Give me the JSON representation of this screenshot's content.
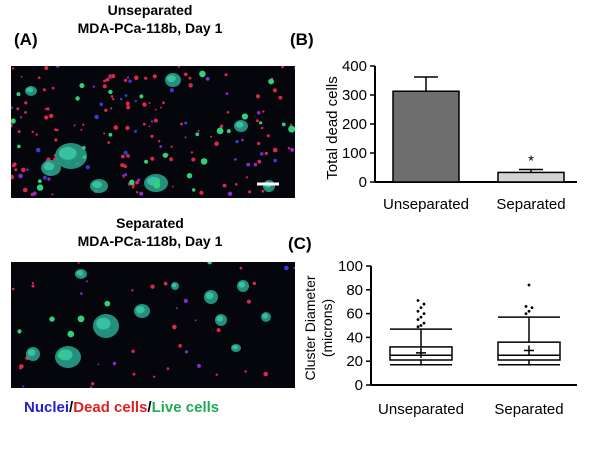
{
  "panel_a": {
    "label": "(A)",
    "top_title_line1": "Unseparated",
    "top_title_line2": "MDA-PCa-118b, Day 1",
    "bottom_title_line1": "Separated",
    "bottom_title_line2": "MDA-PCa-118b, Day 1",
    "legend": {
      "nuclei": "Nuclei",
      "sep1": "/",
      "dead": "Dead cells",
      "sep2": "/",
      "live": "Live cells"
    },
    "colors": {
      "nuclei": "#2222cc",
      "dead": "#dd2222",
      "live": "#22aa55"
    }
  },
  "panel_b": {
    "label": "(B)",
    "ylabel": "Total dead cells",
    "sig_mark": "*"
  },
  "panel_c": {
    "label": "(C)",
    "ylabel_line1": "Cluster Diameter",
    "ylabel_line2": "(microns)"
  },
  "chart_data": [
    {
      "type": "bar",
      "categories": [
        "Unseparated",
        "Separated"
      ],
      "values": [
        313,
        33
      ],
      "error_upper": [
        362,
        43
      ],
      "ylabel": "Total dead cells",
      "ylim": [
        0,
        400
      ],
      "yticks": [
        0,
        100,
        200,
        300,
        400
      ],
      "colors": [
        "#6e6e6e",
        "#d3d3d3"
      ]
    },
    {
      "type": "box",
      "categories": [
        "Unseparated",
        "Separated"
      ],
      "ylabel": "Cluster Diameter (microns)",
      "ylim": [
        0,
        100
      ],
      "yticks": [
        0,
        20,
        40,
        60,
        80,
        100
      ],
      "series": [
        {
          "whisker_low": 17,
          "q1": 21,
          "median": 25,
          "q3": 32,
          "whisker_high": 47,
          "mean": 27,
          "outliers": [
            49,
            50,
            52,
            55,
            57,
            60,
            62,
            65,
            68,
            71
          ]
        },
        {
          "whisker_low": 17,
          "q1": 21,
          "median": 25,
          "q3": 36,
          "whisker_high": 57,
          "mean": 29,
          "outliers": [
            60,
            62,
            65,
            66,
            84
          ]
        }
      ]
    }
  ]
}
